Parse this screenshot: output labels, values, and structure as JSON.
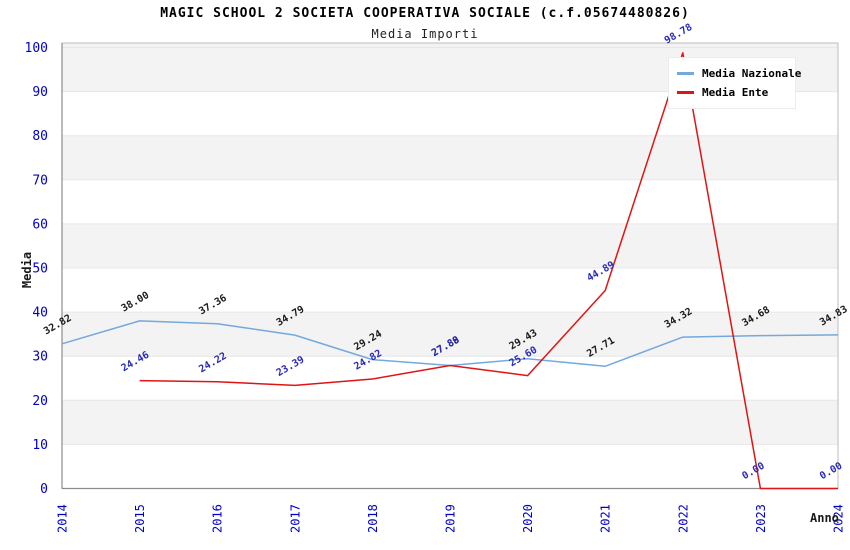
{
  "header": {
    "title": "MAGIC SCHOOL 2 SOCIETA COOPERATIVA SOCIALE (c.f.05674480826)",
    "subtitle": "Media Importi"
  },
  "legend": {
    "items": [
      {
        "label": "Media Nazionale",
        "color": "#74a9dc"
      },
      {
        "label": "Media Ente",
        "color": "#e01414"
      }
    ]
  },
  "axes": {
    "y_label": "Media",
    "x_label": "Anno",
    "y_ticks": [
      0,
      10,
      20,
      30,
      40,
      50,
      60,
      70,
      80,
      90,
      100
    ],
    "x_ticks": [
      "2014",
      "2015",
      "2016",
      "2017",
      "2018",
      "2019",
      "2020",
      "2021",
      "2022",
      "2023",
      "2024"
    ]
  },
  "chart_data": {
    "type": "line",
    "title": "MAGIC SCHOOL 2 SOCIETA COOPERATIVA SOCIALE (c.f.05674480826)",
    "subtitle": "Media Importi",
    "xlabel": "Anno",
    "ylabel": "Media",
    "ylim": [
      0,
      100
    ],
    "grid": true,
    "legend_position": "top-right",
    "band_fill": "#f3f3f3",
    "x": [
      2014,
      2015,
      2016,
      2017,
      2018,
      2019,
      2020,
      2021,
      2022,
      2023,
      2024
    ],
    "series": [
      {
        "name": "Media Nazionale",
        "color": "#74a9dc",
        "label_color": "#1a1a1a",
        "values": [
          32.82,
          38.0,
          37.36,
          34.79,
          29.24,
          27.88,
          29.43,
          27.71,
          34.32,
          34.68,
          34.83
        ]
      },
      {
        "name": "Media Ente",
        "color": "#e01414",
        "label_color": "#2a2ab8",
        "values": [
          null,
          24.46,
          24.22,
          23.39,
          24.82,
          27.89,
          25.6,
          44.89,
          98.78,
          0.0,
          0.0
        ]
      }
    ]
  },
  "style": {
    "tick_color": "#0000cd",
    "grid_color": "#e7e7e7",
    "frame_color": "#bdbdbd",
    "axis_color": "#8c8c8c"
  }
}
